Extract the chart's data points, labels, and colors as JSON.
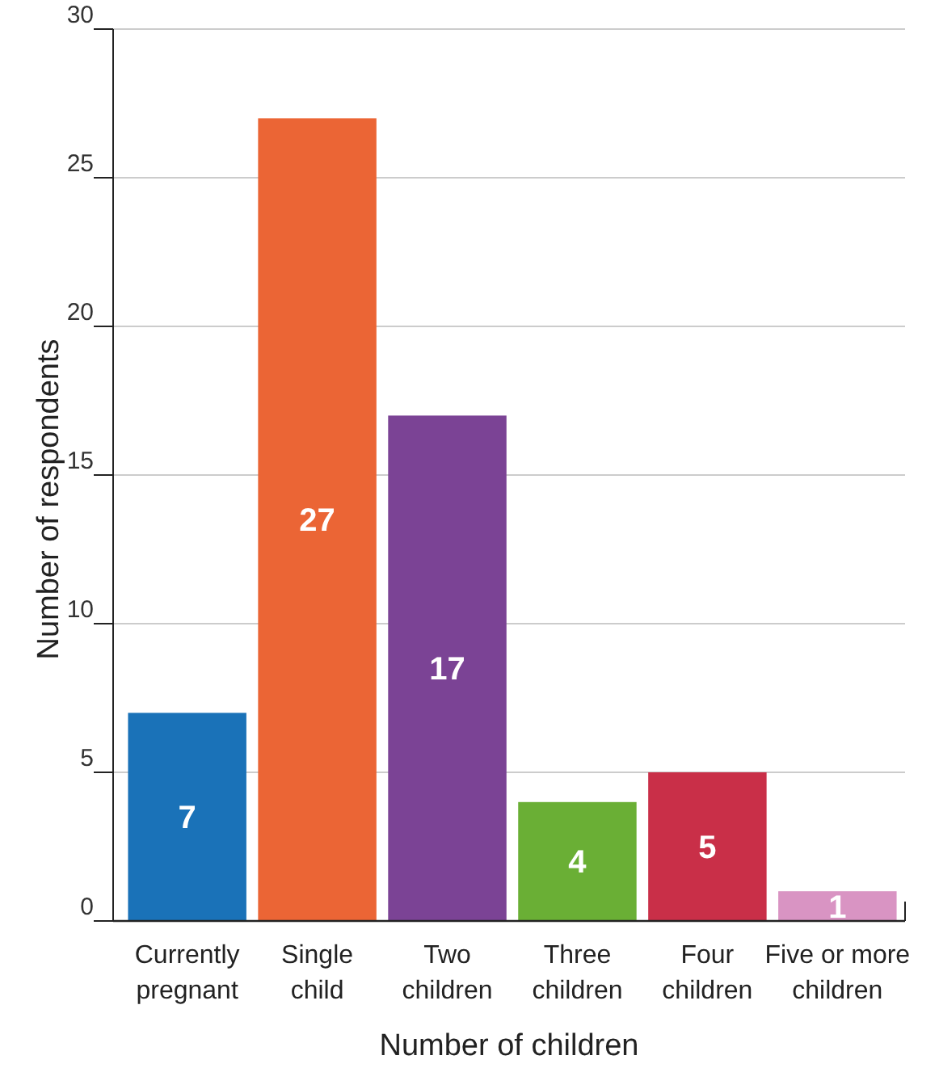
{
  "chart_data": {
    "type": "bar",
    "xlabel": "Number of children",
    "ylabel": "Number of respondents",
    "categories": [
      "Currently pregnant",
      "Single child",
      "Two children",
      "Three children",
      "Four children",
      "Five or more children"
    ],
    "values": [
      7,
      27,
      17,
      4,
      5,
      1
    ],
    "colors": [
      "#1a72b8",
      "#eb6535",
      "#7b4395",
      "#6aaf35",
      "#c92f48",
      "#d994c3"
    ],
    "ylim": [
      0,
      30
    ],
    "yticks": [
      0,
      5,
      10,
      15,
      20,
      25,
      30
    ],
    "grid": "y",
    "data_labels": true
  }
}
